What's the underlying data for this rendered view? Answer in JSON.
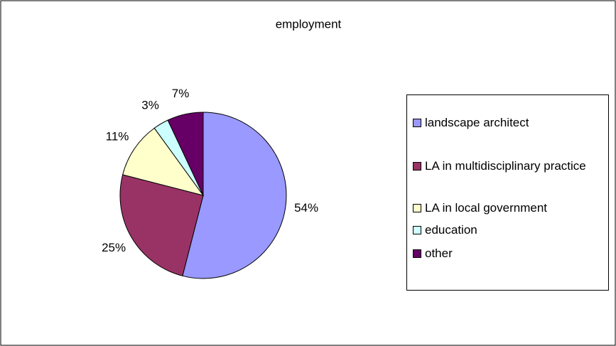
{
  "chart_data": {
    "type": "pie",
    "title": "employment",
    "categories": [
      "landscape architect",
      "LA in multidisciplinary practice",
      "LA in local government",
      "education",
      "other"
    ],
    "values": [
      54,
      25,
      11,
      3,
      7
    ],
    "value_labels": [
      "54%",
      "25%",
      "11%",
      "3%",
      "7%"
    ],
    "colors": [
      "#9999ff",
      "#993366",
      "#ffffcc",
      "#ccffff",
      "#660066"
    ],
    "legend": "right"
  }
}
